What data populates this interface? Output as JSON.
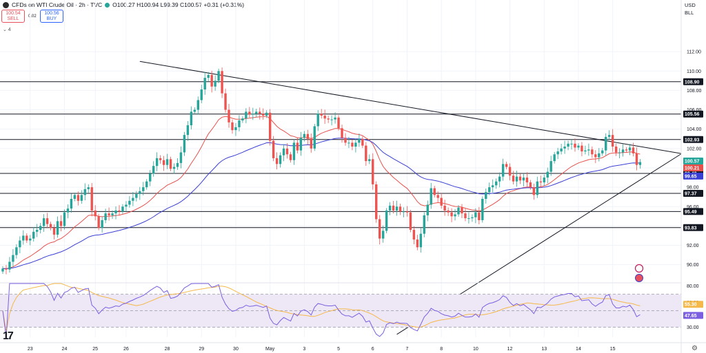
{
  "header": {
    "title": "CFDs on WTI Crude Oil · 2h · TVC",
    "ohlc": "O100.27 H100.94 L99.39 C100.57 +0.31 (+0.31%)",
    "status_color": "#26a69a",
    "sell_price": "100.54",
    "sell_label": "SELL",
    "buy_price": "100.56",
    "buy_label": "BUY",
    "spread": "0.02",
    "collapse": "⌄ 4"
  },
  "currency": {
    "unit": "USD",
    "scale": "BLL"
  },
  "footer": {
    "logo": "17",
    "settings_icon": "gear-icon"
  },
  "colors": {
    "up": "#26a69a",
    "down": "#ef5350",
    "ma_fast": "#e8504c",
    "ma_slow": "#3a3fd4",
    "rsi": "#7b5fe0",
    "rsi_ma": "#f5b84a",
    "level": "#131722",
    "trend": "#131722",
    "rsi_band": "#ede7f6"
  },
  "chart_data": {
    "type": "candlestick",
    "symbol": "CFDs on WTI Crude Oil",
    "timeframe": "2h",
    "price_axis": {
      "range": [
        88.2,
        114.0
      ],
      "ticks": [
        90,
        92,
        94,
        96,
        98,
        100,
        102,
        104,
        106,
        108,
        110,
        112
      ],
      "tick_labels": [
        "90.00",
        "92.00",
        "94.00",
        "96.00",
        "98.00",
        "100.00",
        "102.00",
        "104.00",
        "106.00",
        "108.00",
        "110.00",
        "112.00"
      ]
    },
    "x_axis": {
      "labels": [
        "23",
        "24",
        "25",
        "26",
        "28",
        "29",
        "30",
        "May",
        "3",
        "5",
        "6",
        "7",
        "8",
        "10",
        "12",
        "13",
        "14",
        "15"
      ],
      "label_bar_index": [
        8,
        18,
        27,
        36,
        48,
        58,
        68,
        78,
        88,
        98,
        108,
        118,
        128,
        138,
        148,
        158,
        168,
        178
      ]
    },
    "horizontal_levels": [
      {
        "value": 108.9,
        "label": "108.90",
        "color": "#131722"
      },
      {
        "value": 105.56,
        "label": "105.56",
        "color": "#131722"
      },
      {
        "value": 102.93,
        "label": "102.93",
        "color": "#131722"
      },
      {
        "value": 99.43,
        "label": "99.43",
        "color": "#131722"
      },
      {
        "value": 97.37,
        "label": "97.37",
        "color": "#131722"
      },
      {
        "value": 95.49,
        "label": "95.49",
        "color": "#131722"
      },
      {
        "value": 93.83,
        "label": "93.83",
        "color": "#131722"
      }
    ],
    "price_tags": [
      {
        "value": 100.57,
        "label": "100.57",
        "color": "#26a69a"
      },
      {
        "value": 100.21,
        "label": "100.21",
        "color": "#e8504c"
      },
      {
        "value": 99.65,
        "label": "99.65",
        "color": "#3a3fd4"
      }
    ],
    "trendlines": [
      {
        "name": "descending",
        "from": [
          40,
          111.0
        ],
        "to": [
          196,
          101.6
        ]
      },
      {
        "name": "ascending",
        "from": [
          115,
          82.8
        ],
        "to": [
          196,
          101.0
        ]
      }
    ],
    "close": [
      89.6,
      89.5,
      90.3,
      91.0,
      91.8,
      92.5,
      93.0,
      92.5,
      92.7,
      93.4,
      93.6,
      94.0,
      94.8,
      94.2,
      93.8,
      93.1,
      94.5,
      94.0,
      95.4,
      95.8,
      96.8,
      97.2,
      96.6,
      97.2,
      97.8,
      98.0,
      95.6,
      95.0,
      93.8,
      94.6,
      95.3,
      95.1,
      95.3,
      95.6,
      95.5,
      96.0,
      96.2,
      96.6,
      96.9,
      97.3,
      97.6,
      98.0,
      98.6,
      99.4,
      100.2,
      101.0,
      100.8,
      100.3,
      100.9,
      99.9,
      100.1,
      100.5,
      101.6,
      103.4,
      104.4,
      105.8,
      106.0,
      107.0,
      108.1,
      109.3,
      109.6,
      108.4,
      109.0,
      110.0,
      107.7,
      106.0,
      104.7,
      103.9,
      104.2,
      104.9,
      105.1,
      105.8,
      105.5,
      105.6,
      105.8,
      105.6,
      105.4,
      105.7,
      102.8,
      101.0,
      100.4,
      101.3,
      102.0,
      101.4,
      100.8,
      102.6,
      101.8,
      103.1,
      103.5,
      103.0,
      102.0,
      104.3,
      105.6,
      105.4,
      105.1,
      105.0,
      105.0,
      105.2,
      104.1,
      103.1,
      102.6,
      102.6,
      102.2,
      102.6,
      103.0,
      102.3,
      100.7,
      100.9,
      98.3,
      94.7,
      92.7,
      93.5,
      95.6,
      96.1,
      95.6,
      96.0,
      95.5,
      95.5,
      95.4,
      93.6,
      92.6,
      91.8,
      93.2,
      95.1,
      96.2,
      97.9,
      97.2,
      96.9,
      96.1,
      95.6,
      95.4,
      95.0,
      95.2,
      95.9,
      95.3,
      94.8,
      94.8,
      94.9,
      95.4,
      94.6,
      96.8,
      97.5,
      98.0,
      98.2,
      98.6,
      99.1,
      100.4,
      100.1,
      99.2,
      98.6,
      99.1,
      98.7,
      99.0,
      98.5,
      98.0,
      97.2,
      98.6,
      98.5,
      99.0,
      99.6,
      100.7,
      101.4,
      101.7,
      102.0,
      102.2,
      102.5,
      102.5,
      102.1,
      102.3,
      101.7,
      101.8,
      101.9,
      101.4,
      101.1,
      101.5,
      101.8,
      103.2,
      103.4,
      102.2,
      101.6,
      101.6,
      101.9,
      101.8,
      102.1,
      101.5,
      100.3,
      100.6
    ],
    "series": [
      {
        "name": "",
        "type": "moving_average",
        "last": 100.21
      },
      {
        "name": "",
        "type": "moving_average",
        "last": 99.65
      }
    ],
    "rsi": {
      "range": [
        18,
        83
      ],
      "ticks": [
        20,
        30,
        40,
        50,
        60,
        70,
        80
      ],
      "tick_labels": [
        "",
        "30.00",
        "",
        "",
        "60.00",
        "",
        "80.00"
      ],
      "bands": [
        30,
        50,
        70
      ],
      "last": 47.65,
      "last_label": "47.65",
      "ma_last": 55.3,
      "ma_label": "55.30"
    }
  }
}
